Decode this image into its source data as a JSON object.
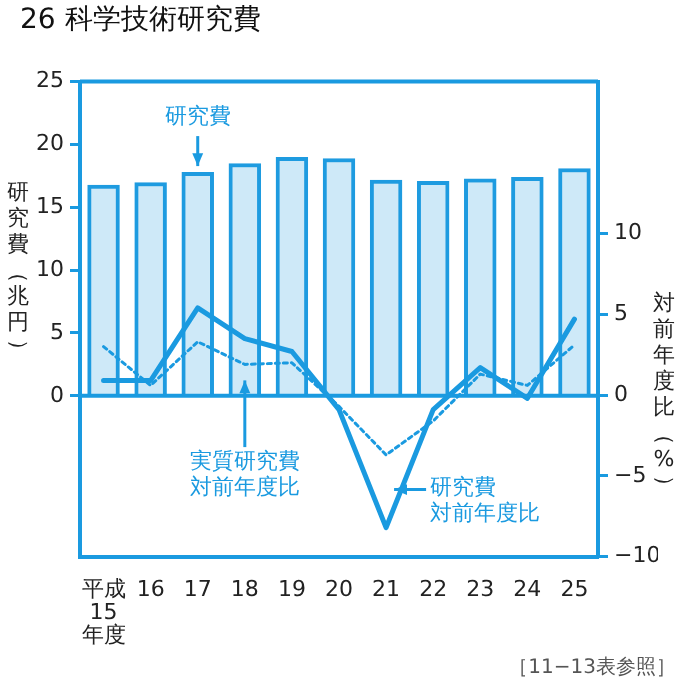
{
  "chart_data": {
    "type": "bar",
    "title": "26 科学技術研究費",
    "ylabel": "研究費（兆円）",
    "y2label": "対前年度比（%）",
    "categories": [
      "平成15年度",
      "16",
      "17",
      "18",
      "19",
      "20",
      "21",
      "22",
      "23",
      "24",
      "25"
    ],
    "series": [
      {
        "name": "研究費",
        "color": "#1e9be0",
        "values": [
          16.8,
          17.0,
          17.8,
          18.5,
          19.0,
          18.9,
          17.2,
          17.1,
          17.3,
          17.4,
          18.1
        ]
      },
      {
        "name": "研究費対前年度比",
        "type": "line",
        "axis": "y2",
        "line_style": "solid",
        "color": "#1a9ae0",
        "values": [
          0.9,
          0.9,
          5.4,
          3.5,
          2.7,
          -0.9,
          -8.2,
          -0.9,
          1.7,
          -0.2,
          4.7
        ]
      },
      {
        "name": "実質研究費対前年度比",
        "type": "line",
        "axis": "y2",
        "line_style": "dotted",
        "color": "#1a9ae0",
        "values": [
          3.0,
          0.6,
          3.3,
          1.9,
          2.0,
          -0.7,
          -3.7,
          -1.6,
          1.3,
          0.6,
          3.1
        ]
      }
    ],
    "ylim": [
      -12.8,
      25
    ],
    "yticks": [
      0,
      5,
      10,
      15,
      20,
      25
    ],
    "y2lim": [
      -10,
      19.4
    ],
    "y2ticks": [
      {
        "value": -10,
        "label": "−10"
      },
      {
        "value": -5,
        "label": "−5"
      },
      0,
      5,
      10
    ],
    "ref_lines": [
      {
        "axis": "y",
        "value": 0
      }
    ],
    "annotations": [
      "［11−13表参照］"
    ],
    "grid": false,
    "legend": "bottom right",
    "marker": "none"
  }
}
